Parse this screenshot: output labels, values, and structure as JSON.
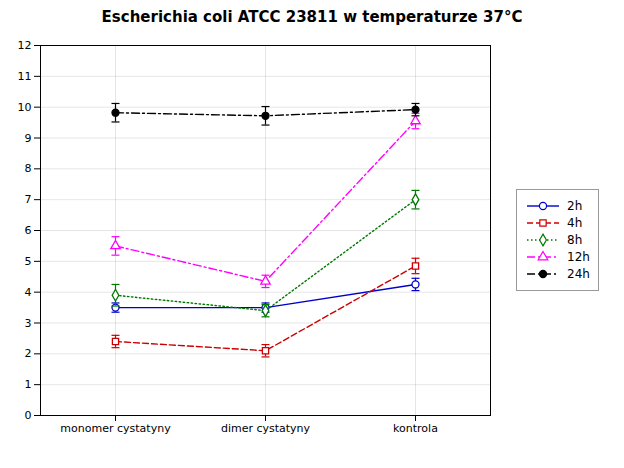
{
  "chart_data": {
    "type": "line",
    "title": "Escherichia coli ATCC 23811 w temperaturze 37°C",
    "categories": [
      "monomer cystatyny",
      "dimer cystatyny",
      "kontrola"
    ],
    "series": [
      {
        "name": "2h",
        "color": "#0000cc",
        "line_style": "solid",
        "marker": "circle",
        "values": [
          3.5,
          3.5,
          4.25
        ],
        "errors": [
          0.15,
          0.15,
          0.2
        ]
      },
      {
        "name": "4h",
        "color": "#cc0000",
        "line_style": "dashed",
        "marker": "square",
        "values": [
          2.4,
          2.1,
          4.85
        ],
        "errors": [
          0.2,
          0.2,
          0.25
        ]
      },
      {
        "name": "8h",
        "color": "#007700",
        "line_style": "dotted",
        "marker": "diamond",
        "values": [
          3.9,
          3.4,
          7.0
        ],
        "errors": [
          0.35,
          0.2,
          0.3
        ]
      },
      {
        "name": "12h",
        "color": "#ff00ff",
        "line_style": "dashdot",
        "marker": "triangle",
        "values": [
          5.5,
          4.35,
          9.55
        ],
        "errors": [
          0.3,
          0.2,
          0.25
        ]
      },
      {
        "name": "24h",
        "color": "#000000",
        "line_style": "dashdot",
        "marker": "filled circle",
        "values": [
          9.82,
          9.72,
          9.92
        ],
        "errors": [
          0.3,
          0.3,
          0.2
        ]
      }
    ],
    "ylim": [
      0,
      12
    ],
    "yticks": [
      0,
      1,
      2,
      3,
      4,
      5,
      6,
      7,
      8,
      9,
      10,
      11,
      12
    ],
    "grid": true,
    "legend": "right"
  }
}
